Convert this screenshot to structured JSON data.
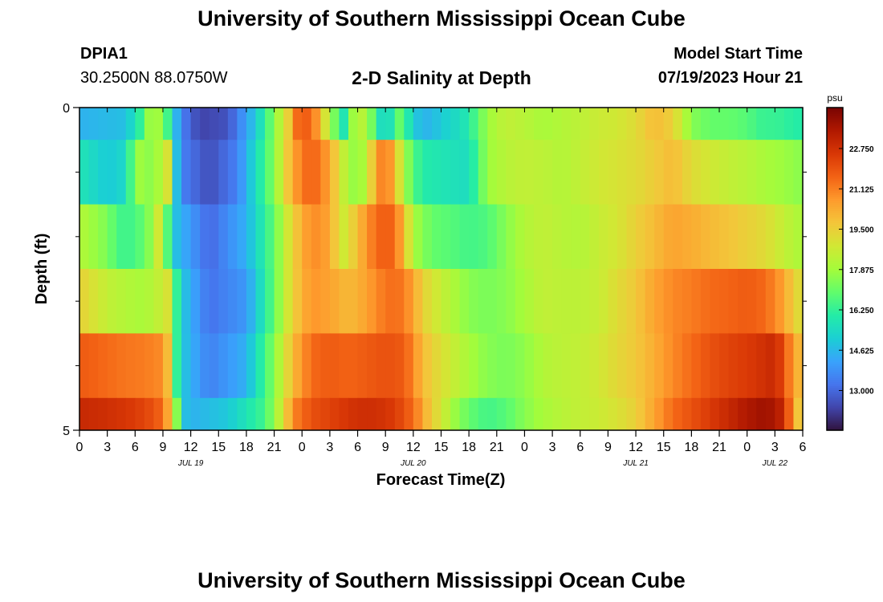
{
  "header": {
    "title": "University of Southern Mississippi Ocean Cube",
    "station_id": "DPIA1",
    "station_coords": "30.2500N  88.0750W",
    "plot_title": "2-D Salinity at Depth",
    "model_start_label": "Model Start Time",
    "model_start_value": "07/19/2023 Hour 21"
  },
  "footer": {
    "title": "University of Southern Mississippi Ocean Cube"
  },
  "chart_data": {
    "type": "heatmap",
    "title": "2-D Salinity at Depth",
    "xlabel": "Forecast Time(Z)",
    "ylabel": "Depth (ft)",
    "ylim": [
      5,
      0
    ],
    "y_tick_labels": [
      "0",
      "5"
    ],
    "y_minor_ticks": [
      1,
      2,
      3,
      4
    ],
    "x_start_hour": 0,
    "x_end_hour": 78,
    "x_tick_step_hours": 3,
    "x_tick_labels": [
      "0",
      "3",
      "6",
      "9",
      "12",
      "15",
      "18",
      "21",
      "0",
      "3",
      "6",
      "9",
      "12",
      "15",
      "18",
      "21",
      "0",
      "3",
      "6",
      "9",
      "12",
      "15",
      "18",
      "21",
      "0",
      "3",
      "6"
    ],
    "date_labels": [
      {
        "text": "JUL 19",
        "hour": 12
      },
      {
        "text": "JUL 20",
        "hour": 36
      },
      {
        "text": "JUL 21",
        "hour": 60
      },
      {
        "text": "JUL 22",
        "hour": 75
      }
    ],
    "color_scale": {
      "unit": "psu",
      "min": 11.4,
      "max": 24.4,
      "tick_values": [
        13.0,
        14.625,
        16.25,
        17.875,
        19.5,
        21.125,
        22.75
      ],
      "tick_labels": [
        "13.000",
        "14.625",
        "16.250",
        "17.875",
        "19.500",
        "21.125",
        "22.750"
      ],
      "colors": [
        "#30123b",
        "#4145ab",
        "#4675ed",
        "#39a2fc",
        "#1bcfd4",
        "#24eca6",
        "#61fc6c",
        "#a4fc3b",
        "#d1e834",
        "#f3c63a",
        "#fe9b2d",
        "#f36315",
        "#d93806",
        "#b11901",
        "#7a0402"
      ]
    },
    "depth_rows_ft": [
      0.25,
      0.75,
      1.75,
      2.75,
      3.75,
      4.625
    ],
    "row_edges_ft": [
      0,
      0.5,
      1.5,
      2.5,
      3.5,
      4.5,
      5
    ],
    "series": [
      {
        "name": "depth_0.25ft",
        "hours": [
          0,
          5,
          6.5,
          8,
          9.5,
          11,
          13,
          16,
          19,
          21,
          22.5,
          23.5,
          25,
          27,
          28.5,
          29.5,
          31,
          32,
          33,
          34,
          34.5,
          35,
          36,
          37,
          38,
          39,
          40,
          41,
          42,
          44,
          46,
          48,
          50,
          52,
          54,
          56,
          58,
          60,
          62,
          64,
          66,
          68,
          70,
          72,
          73,
          74,
          75,
          76,
          77,
          78
        ],
        "values": [
          14.5,
          14.8,
          16.2,
          18.5,
          16.5,
          13.5,
          12.3,
          12.6,
          15.0,
          17.5,
          19.5,
          21.5,
          21.8,
          18.0,
          15.8,
          17.8,
          18.5,
          16.0,
          15.2,
          16.2,
          17.0,
          16.5,
          15.2,
          14.5,
          14.7,
          15.0,
          15.4,
          15.5,
          16.0,
          17.8,
          18.5,
          18.3,
          18.0,
          18.2,
          18.4,
          18.7,
          18.8,
          19.2,
          20.0,
          19.5,
          17.5,
          17.0,
          17.0,
          16.8,
          16.5,
          16.3,
          16.4,
          16.2,
          16.1,
          16.0
        ]
      },
      {
        "name": "depth_0.75ft",
        "hours": [
          0,
          3,
          4.5,
          5.5,
          6.5,
          8,
          9.5,
          10,
          11,
          14,
          17,
          19,
          21,
          23,
          25,
          27,
          28,
          29,
          30,
          31,
          32,
          33,
          34,
          35,
          36,
          37,
          38,
          40,
          42,
          44,
          46,
          48,
          50,
          52,
          54,
          56,
          58,
          60,
          62,
          64,
          66,
          68,
          70,
          72,
          74,
          76,
          78
        ],
        "values": [
          15.8,
          15.0,
          15.3,
          16.5,
          17.8,
          17.5,
          19.0,
          16.0,
          13.5,
          12.5,
          13.5,
          15.5,
          17.5,
          20.5,
          21.8,
          20.5,
          19.0,
          18.0,
          17.5,
          18.5,
          20.5,
          21.5,
          20.0,
          18.0,
          16.8,
          16.0,
          15.9,
          15.7,
          15.5,
          17.8,
          18.3,
          18.5,
          18.4,
          18.2,
          18.5,
          18.8,
          19.0,
          19.2,
          19.6,
          20.0,
          19.2,
          18.8,
          18.5,
          18.3,
          18.0,
          17.8,
          17.5
        ]
      },
      {
        "name": "depth_1.75ft",
        "hours": [
          0,
          2.5,
          3.5,
          4.5,
          6,
          7.5,
          8.5,
          9,
          10,
          14,
          18,
          21,
          23,
          25,
          27,
          28,
          28.5,
          29.5,
          31,
          32,
          33,
          34,
          35,
          36,
          37,
          38,
          40,
          42,
          44,
          46,
          48,
          50,
          52,
          54,
          56,
          58,
          60,
          62,
          64,
          66,
          68,
          70,
          72,
          74,
          76,
          78
        ],
        "values": [
          18.2,
          17.5,
          17.0,
          16.5,
          16.5,
          17.5,
          18.8,
          18.5,
          15.0,
          13.0,
          14.5,
          17.0,
          19.5,
          21.0,
          20.5,
          19.0,
          18.8,
          19.5,
          20.8,
          21.5,
          21.8,
          21.5,
          20.0,
          18.0,
          17.5,
          17.0,
          16.8,
          16.5,
          16.7,
          17.5,
          18.2,
          18.5,
          18.3,
          18.2,
          18.6,
          18.9,
          19.5,
          20.0,
          20.5,
          20.3,
          20.0,
          19.8,
          19.5,
          19.2,
          18.5,
          18.0
        ]
      },
      {
        "name": "depth_2.75ft",
        "hours": [
          0,
          1.5,
          3,
          5,
          7,
          8.5,
          9.5,
          10,
          11,
          14,
          18,
          21,
          23,
          25,
          27,
          29,
          31,
          32,
          33,
          34,
          35,
          36,
          37,
          38,
          40,
          42,
          44,
          46,
          48,
          50,
          52,
          54,
          56,
          58,
          60,
          62,
          64,
          66,
          68,
          70,
          72,
          74,
          76,
          77,
          78
        ],
        "values": [
          19.5,
          19.0,
          18.5,
          18.2,
          18.0,
          18.5,
          19.0,
          17.5,
          15.0,
          13.2,
          14.0,
          17.0,
          19.5,
          20.8,
          20.5,
          20.0,
          20.5,
          21.0,
          21.3,
          21.5,
          21.2,
          20.5,
          19.5,
          19.0,
          18.2,
          17.5,
          17.3,
          17.5,
          18.0,
          18.5,
          18.4,
          18.4,
          18.6,
          19.2,
          19.7,
          20.5,
          21.0,
          21.2,
          21.5,
          21.6,
          21.8,
          21.5,
          20.5,
          19.5,
          19.0
        ]
      },
      {
        "name": "depth_3.75ft",
        "hours": [
          0,
          3,
          5,
          7,
          8.5,
          9.5,
          10,
          11,
          14,
          18,
          21,
          23,
          25,
          27,
          29,
          31,
          33,
          35,
          36,
          37,
          38,
          40,
          42,
          44,
          46,
          48,
          50,
          52,
          54,
          56,
          58,
          60,
          62,
          64,
          66,
          68,
          70,
          72,
          74,
          75,
          76,
          77,
          78
        ],
        "values": [
          21.8,
          21.5,
          21.3,
          21.2,
          21.0,
          20.0,
          17.5,
          15.0,
          13.5,
          14.5,
          17.5,
          20.0,
          21.5,
          21.8,
          21.6,
          21.8,
          22.0,
          21.8,
          21.0,
          20.0,
          19.5,
          18.7,
          18.0,
          17.5,
          17.3,
          17.6,
          18.2,
          18.4,
          18.5,
          18.8,
          19.3,
          19.7,
          20.3,
          21.0,
          21.5,
          22.0,
          22.3,
          22.5,
          22.8,
          23.0,
          22.0,
          20.5,
          19.8
        ]
      },
      {
        "name": "depth_4.625ft",
        "hours": [
          0,
          3,
          6,
          8,
          9,
          9.5,
          10,
          10.5,
          11,
          12,
          16,
          20,
          22,
          23,
          25,
          28,
          30,
          32,
          34,
          35,
          36,
          37,
          38,
          39,
          40,
          42,
          44,
          46,
          48,
          50,
          52,
          54,
          56,
          58,
          60,
          62,
          64,
          66,
          68,
          70,
          72,
          74,
          75,
          76,
          77,
          78
        ],
        "values": [
          23.0,
          22.8,
          22.5,
          22.0,
          21.5,
          20.5,
          19.0,
          17.5,
          15.0,
          14.5,
          15.0,
          16.5,
          19.0,
          21.0,
          22.0,
          22.5,
          22.8,
          22.8,
          22.5,
          22.0,
          21.5,
          20.5,
          19.5,
          19.0,
          18.0,
          17.0,
          16.5,
          16.8,
          17.5,
          18.0,
          18.3,
          18.5,
          18.7,
          19.0,
          19.5,
          20.5,
          21.5,
          22.0,
          22.5,
          23.0,
          23.5,
          23.8,
          23.5,
          23.0,
          20.5,
          19.0
        ]
      }
    ]
  }
}
